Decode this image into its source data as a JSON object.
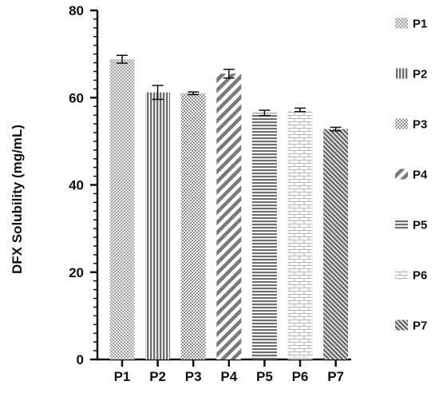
{
  "chart_data": {
    "type": "bar",
    "categories": [
      "P1",
      "P2",
      "P3",
      "P4",
      "P5",
      "P6",
      "P7"
    ],
    "values": [
      68.8,
      61.2,
      61.0,
      65.5,
      56.5,
      57.2,
      52.8
    ],
    "errors": [
      0.9,
      1.6,
      0.3,
      1.0,
      0.6,
      0.4,
      0.4
    ],
    "ylabel": "DFX Solubility (mg/mL)",
    "xlabel": "",
    "ylim": [
      0,
      80
    ],
    "yticks": [
      0,
      20,
      40,
      60,
      80
    ],
    "grid": false,
    "legend": {
      "placement": "right",
      "entries": [
        "P1",
        "P2",
        "P3",
        "P4",
        "P5",
        "P6",
        "P7"
      ]
    },
    "patterns": [
      "fine-crosshatch",
      "vertical-lines",
      "checker",
      "diagonal-lines",
      "horizontal-lines",
      "brick",
      "dense-diagonal"
    ],
    "colors": {
      "axis": "#111111",
      "bar_fill": "#ffffff",
      "pattern": "#8a8a8a",
      "pattern_dark": "#6e6e6e"
    }
  }
}
